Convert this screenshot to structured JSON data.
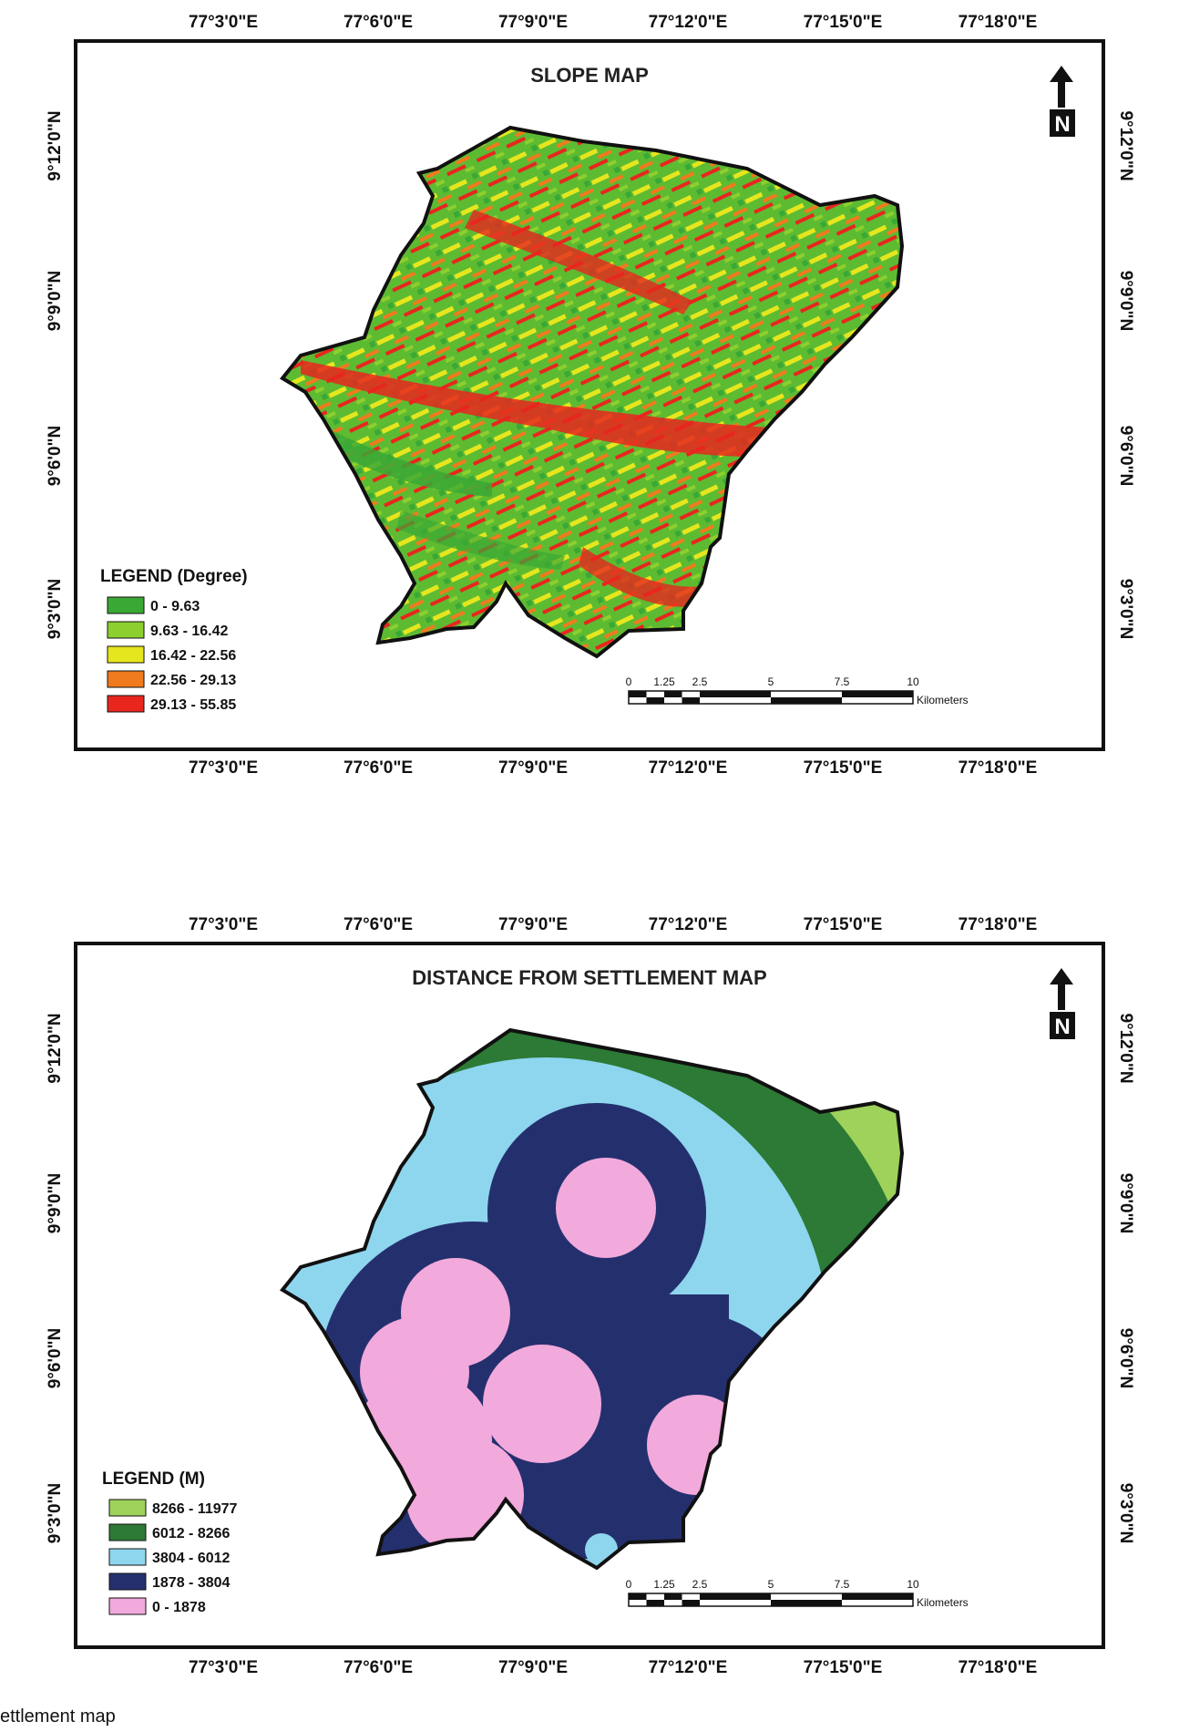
{
  "maps": [
    {
      "title": "SLOPE MAP",
      "legend_title": "LEGEND (Degree)",
      "legend": [
        {
          "label": "0 - 9.63",
          "color": "#3aa835"
        },
        {
          "label": "9.63 - 16.42",
          "color": "#8ccf2e"
        },
        {
          "label": "16.42 - 22.56",
          "color": "#e6e61e"
        },
        {
          "label": "22.56 - 29.13",
          "color": "#f07a1e"
        },
        {
          "label": "29.13 - 55.85",
          "color": "#e8261e"
        }
      ]
    },
    {
      "title": "DISTANCE FROM SETTLEMENT MAP",
      "legend_title": "LEGEND (M)",
      "legend": [
        {
          "label": "8266 - 11977",
          "color": "#9ed25a"
        },
        {
          "label": "6012 - 8266",
          "color": "#2c7a35"
        },
        {
          "label": "3804 - 6012",
          "color": "#8ed6ee"
        },
        {
          "label": "1878 - 3804",
          "color": "#24306e"
        },
        {
          "label": "0 - 1878",
          "color": "#f2a9dc"
        }
      ]
    }
  ],
  "longitude_ticks": [
    "77°3'0\"E",
    "77°6'0\"E",
    "77°9'0\"E",
    "77°12'0\"E",
    "77°15'0\"E",
    "77°18'0\"E"
  ],
  "latitude_ticks": [
    "9°12'0\"N",
    "9°9'0\"N",
    "9°6'0\"N",
    "9°3'0\"N"
  ],
  "north_label": "N",
  "scale_bar": {
    "labels": [
      "0",
      "1.25",
      "2.5",
      "5",
      "7.5",
      "10"
    ],
    "unit": "Kilometers"
  },
  "caption": "ettlement map"
}
